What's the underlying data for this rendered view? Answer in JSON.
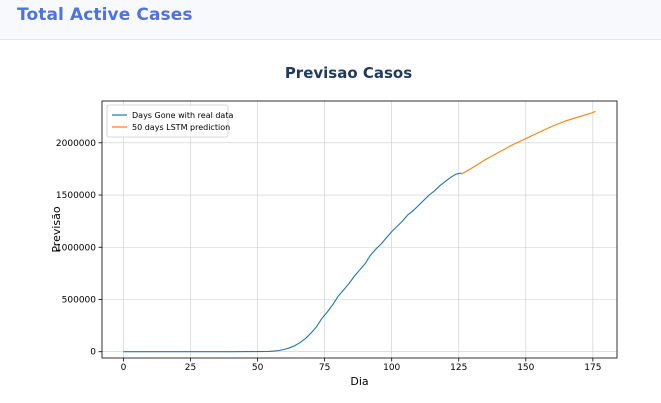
{
  "header": {
    "title": "Total Active Cases"
  },
  "chart_data": {
    "type": "line",
    "title": "Previsao Casos",
    "xlabel": "Dia",
    "ylabel": "Previsão",
    "xlim": [
      -8,
      184
    ],
    "ylim": [
      -60000,
      2400000
    ],
    "xticks": [
      0,
      25,
      50,
      75,
      100,
      125,
      150,
      175
    ],
    "yticks": [
      0,
      500000,
      1000000,
      1500000,
      2000000
    ],
    "grid": true,
    "legend_position": "top-left",
    "series": [
      {
        "name": "Days Gone with real data",
        "color": "#1f77b4",
        "x": [
          0,
          10,
          20,
          30,
          40,
          50,
          54,
          56,
          58,
          60,
          62,
          64,
          66,
          68,
          70,
          72,
          74,
          76,
          78,
          80,
          82,
          84,
          86,
          88,
          90,
          92,
          94,
          96,
          98,
          100,
          102,
          104,
          106,
          108,
          110,
          112,
          114,
          116,
          118,
          120,
          122,
          124,
          126
        ],
        "values": [
          0,
          0,
          0,
          0,
          0,
          1000,
          3000,
          6000,
          12000,
          22000,
          38000,
          60000,
          90000,
          130000,
          180000,
          240000,
          320000,
          380000,
          450000,
          530000,
          590000,
          650000,
          720000,
          780000,
          840000,
          920000,
          980000,
          1030000,
          1090000,
          1150000,
          1200000,
          1250000,
          1310000,
          1350000,
          1400000,
          1450000,
          1500000,
          1540000,
          1590000,
          1630000,
          1670000,
          1700000,
          1710000
        ]
      },
      {
        "name": "50 days LSTM prediction",
        "color": "#ff7f0e",
        "x": [
          126,
          130,
          135,
          140,
          145,
          150,
          155,
          160,
          165,
          170,
          175,
          176
        ],
        "values": [
          1700000,
          1760000,
          1840000,
          1910000,
          1980000,
          2040000,
          2100000,
          2160000,
          2210000,
          2250000,
          2290000,
          2300000
        ]
      }
    ]
  }
}
